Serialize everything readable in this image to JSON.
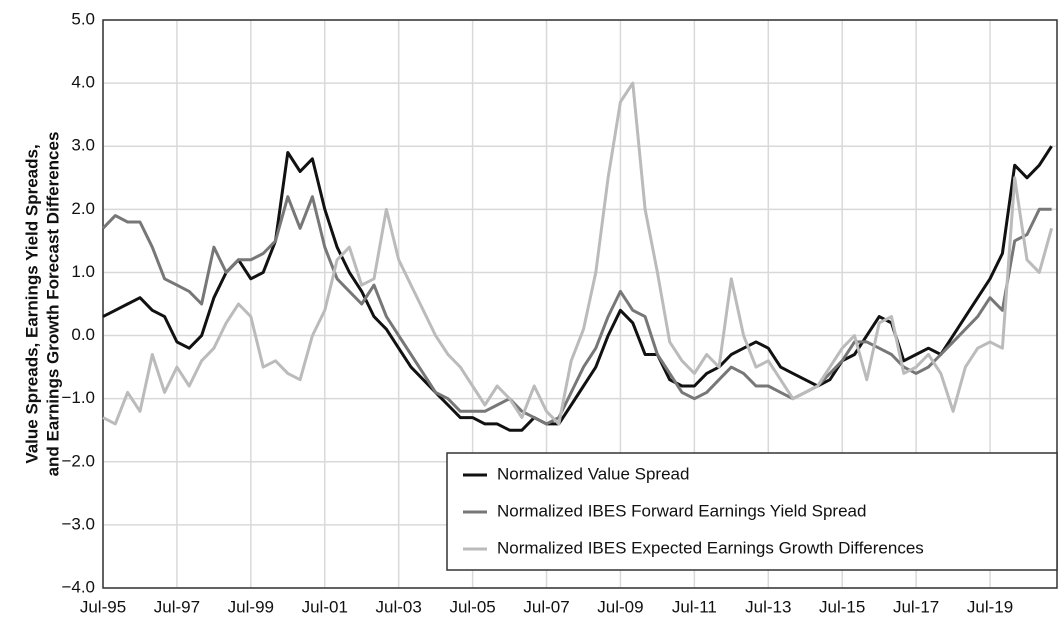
{
  "chart_data": {
    "type": "line",
    "ylabel": [
      "Value Spreads, Earnings Yield Spreads,",
      "and Earnings Growth Forecast Differences"
    ],
    "x": [
      "Jul-95",
      "Nov-95",
      "Mar-96",
      "Jul-96",
      "Nov-96",
      "Mar-97",
      "Jul-97",
      "Nov-97",
      "Mar-98",
      "Jul-98",
      "Nov-98",
      "Mar-99",
      "Jul-99",
      "Nov-99",
      "Mar-00",
      "Jul-00",
      "Nov-00",
      "Mar-01",
      "Jul-01",
      "Nov-01",
      "Mar-02",
      "Jul-02",
      "Nov-02",
      "Mar-03",
      "Jul-03",
      "Nov-03",
      "Mar-04",
      "Jul-04",
      "Nov-04",
      "Mar-05",
      "Jul-05",
      "Nov-05",
      "Mar-06",
      "Jul-06",
      "Nov-06",
      "Mar-07",
      "Jul-07",
      "Nov-07",
      "Mar-08",
      "Jul-08",
      "Nov-08",
      "Mar-09",
      "Jul-09",
      "Nov-09",
      "Mar-10",
      "Jul-10",
      "Nov-10",
      "Mar-11",
      "Jul-11",
      "Nov-11",
      "Mar-12",
      "Jul-12",
      "Nov-12",
      "Mar-13",
      "Jul-13",
      "Nov-13",
      "Mar-14",
      "Jul-14",
      "Nov-14",
      "Mar-15",
      "Jul-15",
      "Nov-15",
      "Mar-16",
      "Jul-16",
      "Nov-16",
      "Mar-17",
      "Jul-17",
      "Nov-17",
      "Mar-18",
      "Jul-18",
      "Nov-18",
      "Mar-19",
      "Jul-19",
      "Nov-19",
      "Mar-20",
      "Jul-20",
      "Nov-20",
      "Mar-21"
    ],
    "xticks": [
      "Jul-95",
      "Jul-97",
      "Jul-99",
      "Jul-01",
      "Jul-03",
      "Jul-05",
      "Jul-07",
      "Jul-09",
      "Jul-11",
      "Jul-13",
      "Jul-15",
      "Jul-17",
      "Jul-19"
    ],
    "ylim": [
      -4,
      5
    ],
    "yticks": [
      {
        "value": -4,
        "label": "−4.0"
      },
      {
        "value": -3,
        "label": "−3.0"
      },
      {
        "value": -2,
        "label": "−2.0"
      },
      {
        "value": -1,
        "label": "−1.0"
      },
      {
        "value": 0,
        "label": "0.0"
      },
      {
        "value": 1,
        "label": "1.0"
      },
      {
        "value": 2,
        "label": "2.0"
      },
      {
        "value": 3,
        "label": "3.0"
      },
      {
        "value": 4,
        "label": "4.0"
      },
      {
        "value": 5,
        "label": "5.0"
      }
    ],
    "grid": true,
    "legend": "lower-right",
    "series": [
      {
        "name": "Normalized Value Spread",
        "color": "#111111",
        "values": [
          0.3,
          0.4,
          0.5,
          0.6,
          0.4,
          0.3,
          -0.1,
          -0.2,
          0.0,
          0.6,
          1.0,
          1.2,
          0.9,
          1.0,
          1.5,
          2.9,
          2.6,
          2.8,
          2.0,
          1.4,
          1.0,
          0.7,
          0.3,
          0.1,
          -0.2,
          -0.5,
          -0.7,
          -0.9,
          -1.1,
          -1.3,
          -1.3,
          -1.4,
          -1.4,
          -1.5,
          -1.5,
          -1.3,
          -1.4,
          -1.4,
          -1.1,
          -0.8,
          -0.5,
          0.0,
          0.4,
          0.2,
          -0.3,
          -0.3,
          -0.7,
          -0.8,
          -0.8,
          -0.6,
          -0.5,
          -0.3,
          -0.2,
          -0.1,
          -0.2,
          -0.5,
          -0.6,
          -0.7,
          -0.8,
          -0.7,
          -0.4,
          -0.3,
          0.0,
          0.3,
          0.2,
          -0.4,
          -0.3,
          -0.2,
          -0.3,
          0.0,
          0.3,
          0.6,
          0.9,
          1.3,
          2.7,
          2.5,
          2.7,
          3.0
        ]
      },
      {
        "name": "Normalized IBES Forward Earnings Yield Spread",
        "color": "#777777",
        "values": [
          1.7,
          1.9,
          1.8,
          1.8,
          1.4,
          0.9,
          0.8,
          0.7,
          0.5,
          1.4,
          1.0,
          1.2,
          1.2,
          1.3,
          1.5,
          2.2,
          1.7,
          2.2,
          1.4,
          0.9,
          0.7,
          0.5,
          0.8,
          0.3,
          0.0,
          -0.3,
          -0.6,
          -0.9,
          -1.0,
          -1.2,
          -1.2,
          -1.2,
          -1.1,
          -1.0,
          -1.2,
          -1.3,
          -1.4,
          -1.3,
          -0.9,
          -0.5,
          -0.2,
          0.3,
          0.7,
          0.4,
          0.3,
          -0.3,
          -0.6,
          -0.9,
          -1.0,
          -0.9,
          -0.7,
          -0.5,
          -0.6,
          -0.8,
          -0.8,
          -0.9,
          -1.0,
          -0.9,
          -0.8,
          -0.6,
          -0.4,
          -0.1,
          -0.1,
          -0.2,
          -0.3,
          -0.5,
          -0.6,
          -0.5,
          -0.3,
          -0.1,
          0.1,
          0.3,
          0.6,
          0.4,
          1.5,
          1.6,
          2.0,
          2.0
        ]
      },
      {
        "name": "Normalized IBES Expected Earnings Growth Differences",
        "color": "#bbbbbb",
        "values": [
          -1.3,
          -1.4,
          -0.9,
          -1.2,
          -0.3,
          -0.9,
          -0.5,
          -0.8,
          -0.4,
          -0.2,
          0.2,
          0.5,
          0.3,
          -0.5,
          -0.4,
          -0.6,
          -0.7,
          0.0,
          0.4,
          1.2,
          1.4,
          0.8,
          0.9,
          2.0,
          1.2,
          0.8,
          0.4,
          0.0,
          -0.3,
          -0.5,
          -0.8,
          -1.1,
          -0.8,
          -1.0,
          -1.3,
          -0.8,
          -1.2,
          -1.4,
          -0.4,
          0.1,
          1.0,
          2.5,
          3.7,
          4.0,
          2.0,
          1.0,
          -0.1,
          -0.4,
          -0.6,
          -0.3,
          -0.5,
          0.9,
          0.0,
          -0.5,
          -0.4,
          -0.7,
          -1.0,
          -0.9,
          -0.8,
          -0.5,
          -0.2,
          0.0,
          -0.7,
          0.2,
          0.3,
          -0.6,
          -0.5,
          -0.3,
          -0.6,
          -1.2,
          -0.5,
          -0.2,
          -0.1,
          -0.2,
          2.5,
          1.2,
          1.0,
          1.7
        ]
      }
    ]
  }
}
